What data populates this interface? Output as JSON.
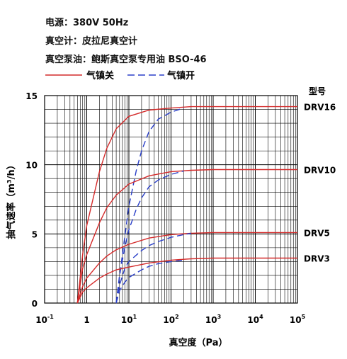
{
  "header": {
    "power": "电源：380V 50Hz",
    "gauge": "真空计：皮拉尼真空计",
    "oil": "真空泵油：鲍斯真空泵专用油 BSO-46"
  },
  "legend": {
    "ballast_closed": "气镇关",
    "ballast_open": "气镇开"
  },
  "colors": {
    "closed": "#d42a2a",
    "open": "#2a3fc8",
    "grid": "#000000"
  },
  "chart_data": {
    "type": "line",
    "xlabel": "真空度（Pa）",
    "ylabel": "抽气速率（m³/h）",
    "x_scale": "log",
    "xlim": [
      0.1,
      100000
    ],
    "ylim": [
      0,
      15
    ],
    "x_ticks": [
      {
        "value": 0.1,
        "base": "10",
        "exp": "-1"
      },
      {
        "value": 1,
        "base": "1",
        "exp": ""
      },
      {
        "value": 10,
        "base": "10",
        "exp": "1"
      },
      {
        "value": 100,
        "base": "10",
        "exp": "2"
      },
      {
        "value": 1000,
        "base": "10",
        "exp": "3"
      },
      {
        "value": 10000,
        "base": "10",
        "exp": "4"
      },
      {
        "value": 100000,
        "base": "10",
        "exp": "5"
      }
    ],
    "y_ticks": [
      0,
      5,
      10,
      15
    ],
    "grid": true,
    "model_label": "型号",
    "series": [
      {
        "name": "DRV16",
        "style": "closed",
        "points": [
          [
            0.6,
            0
          ],
          [
            0.8,
            3.5
          ],
          [
            1,
            5.6
          ],
          [
            2,
            9.5
          ],
          [
            3,
            11.2
          ],
          [
            5,
            12.6
          ],
          [
            10,
            13.5
          ],
          [
            30,
            13.95
          ],
          [
            100,
            14.1
          ],
          [
            300,
            14.2
          ],
          [
            1000,
            14.2
          ],
          [
            100000,
            14.2
          ]
        ]
      },
      {
        "name": "DRV16",
        "style": "open",
        "points": [
          [
            5,
            0
          ],
          [
            7,
            3.5
          ],
          [
            10,
            7.0
          ],
          [
            15,
            9.6
          ],
          [
            20,
            11.0
          ],
          [
            30,
            12.4
          ],
          [
            50,
            13.3
          ],
          [
            100,
            13.8
          ],
          [
            200,
            14.1
          ]
        ]
      },
      {
        "name": "DRV10",
        "style": "closed",
        "points": [
          [
            0.6,
            0
          ],
          [
            0.8,
            2.5
          ],
          [
            1,
            3.5
          ],
          [
            2,
            5.8
          ],
          [
            3,
            6.9
          ],
          [
            5,
            7.8
          ],
          [
            10,
            8.6
          ],
          [
            30,
            9.2
          ],
          [
            100,
            9.5
          ],
          [
            300,
            9.6
          ],
          [
            1000,
            9.65
          ],
          [
            100000,
            9.65
          ]
        ]
      },
      {
        "name": "DRV10",
        "style": "open",
        "points": [
          [
            5,
            0
          ],
          [
            6,
            2.0
          ],
          [
            8,
            4.0
          ],
          [
            10,
            5.3
          ],
          [
            15,
            6.8
          ],
          [
            20,
            7.6
          ],
          [
            30,
            8.4
          ],
          [
            50,
            8.9
          ],
          [
            100,
            9.3
          ],
          [
            200,
            9.55
          ]
        ]
      },
      {
        "name": "DRV5",
        "style": "closed",
        "points": [
          [
            0.6,
            0
          ],
          [
            0.8,
            1.2
          ],
          [
            1,
            1.8
          ],
          [
            2,
            2.9
          ],
          [
            3,
            3.4
          ],
          [
            5,
            3.85
          ],
          [
            10,
            4.25
          ],
          [
            30,
            4.7
          ],
          [
            100,
            4.95
          ],
          [
            300,
            5.05
          ],
          [
            1000,
            5.1
          ],
          [
            100000,
            5.1
          ]
        ]
      },
      {
        "name": "DRV5",
        "style": "open",
        "points": [
          [
            5,
            0
          ],
          [
            6,
            1.3
          ],
          [
            8,
            2.5
          ],
          [
            10,
            3.0
          ],
          [
            20,
            3.8
          ],
          [
            30,
            4.15
          ],
          [
            50,
            4.45
          ],
          [
            100,
            4.75
          ],
          [
            200,
            4.95
          ],
          [
            300,
            5.05
          ]
        ]
      },
      {
        "name": "DRV3",
        "style": "closed",
        "points": [
          [
            0.6,
            0
          ],
          [
            0.8,
            0.8
          ],
          [
            1,
            1.1
          ],
          [
            2,
            1.8
          ],
          [
            3,
            2.1
          ],
          [
            5,
            2.4
          ],
          [
            10,
            2.6
          ],
          [
            30,
            2.9
          ],
          [
            100,
            3.1
          ],
          [
            300,
            3.2
          ],
          [
            1000,
            3.25
          ],
          [
            100000,
            3.25
          ]
        ]
      },
      {
        "name": "DRV3",
        "style": "open",
        "points": [
          [
            5,
            0
          ],
          [
            6,
            0.9
          ],
          [
            8,
            1.5
          ],
          [
            10,
            1.85
          ],
          [
            20,
            2.4
          ],
          [
            30,
            2.65
          ],
          [
            50,
            2.85
          ],
          [
            100,
            3.0
          ],
          [
            200,
            3.1
          ]
        ]
      }
    ],
    "series_labels": [
      {
        "name": "DRV16",
        "y": 14.2
      },
      {
        "name": "DRV10",
        "y": 9.65
      },
      {
        "name": "DRV5",
        "y": 5.1
      },
      {
        "name": "DRV3",
        "y": 3.25
      }
    ]
  }
}
